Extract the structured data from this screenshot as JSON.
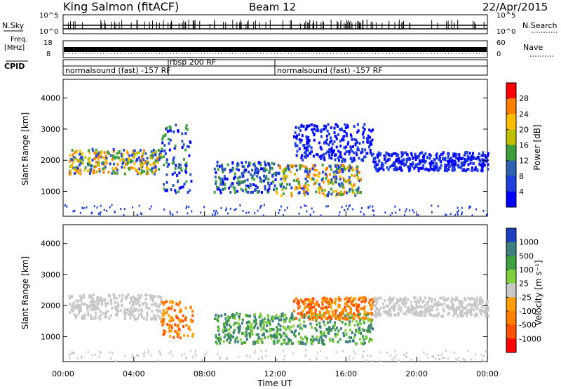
{
  "header": {
    "station": "King Salmon (fitACF)",
    "beam": "Beam 12",
    "date": "22/Apr/2015"
  },
  "strips": {
    "nsky_label": "N.Sky",
    "nsearch_label": "N.Search",
    "exp_top_left": "10^5",
    "exp_bottom_left": "10^0",
    "exp_top_right": "10^5",
    "exp_bottom_right": "10^0",
    "freq_label": "Freq.",
    "freq_unit": "[MHz]",
    "freq_ticks": [
      "18",
      "8"
    ],
    "nave_label": "Nave",
    "nave_ticks": [
      "60",
      "0"
    ],
    "cpid_label": "CPID",
    "cpid_segments": [
      {
        "start_h": 0,
        "end_h": 6.2,
        "label": "normalsound (fast) -157 RF"
      },
      {
        "start_h": 6.2,
        "end_h": 12,
        "label": "rbsp 200 RF"
      },
      {
        "start_h": 12,
        "end_h": 24,
        "label": "normalsound (fast) -157 RF"
      }
    ]
  },
  "chart_data": [
    {
      "type": "heatmap",
      "panel": "power",
      "ylabel": "Slant Range [km]",
      "xlabel": "Time UT",
      "xlim": [
        0,
        24
      ],
      "ylim": [
        200,
        4600
      ],
      "yticks": [
        1000,
        2000,
        3000,
        4000
      ],
      "xticks": [
        "00:00",
        "04:00",
        "08:00",
        "12:00",
        "16:00",
        "20:00",
        "00:00"
      ],
      "colorbar": {
        "label": "Power [dB]",
        "ticks": [
          "28",
          "24",
          "20",
          "16",
          "12",
          "8",
          "4"
        ],
        "colors": [
          "#ff0000",
          "#ff7f00",
          "#ffbf00",
          "#bfbf00",
          "#3f9f3f",
          "#2f5faf",
          "#1f3fdf",
          "#0000ff"
        ]
      },
      "echo_regions": [
        {
          "t0": 0.3,
          "t1": 5.5,
          "r0": 1600,
          "r1": 2400,
          "level": "high"
        },
        {
          "t0": 5.5,
          "t1": 7.2,
          "r0": 1000,
          "r1": 3200,
          "level": "medium"
        },
        {
          "t0": 8.5,
          "t1": 12,
          "r0": 1000,
          "r1": 2000,
          "level": "medium"
        },
        {
          "t0": 12,
          "t1": 16.8,
          "r0": 900,
          "r1": 1900,
          "level": "high"
        },
        {
          "t0": 13,
          "t1": 17.5,
          "r0": 2000,
          "r1": 3200,
          "level": "low"
        },
        {
          "t0": 17.5,
          "t1": 24,
          "r0": 1700,
          "r1": 2300,
          "level": "low"
        }
      ]
    },
    {
      "type": "heatmap",
      "panel": "velocity",
      "ylabel": "Slant Range [km]",
      "xlabel": "Time UT",
      "xlim": [
        0,
        24
      ],
      "ylim": [
        200,
        4600
      ],
      "yticks": [
        1000,
        2000,
        3000,
        4000
      ],
      "xticks": [
        "00:00",
        "04:00",
        "08:00",
        "12:00",
        "16:00",
        "20:00",
        "00:00"
      ],
      "colorbar": {
        "label": "Velocity [m s⁻¹]",
        "ticks": [
          "1000",
          "500",
          "100",
          "25",
          "-25",
          "-100",
          "-500",
          "-1000"
        ],
        "colors": [
          "#1f3fbf",
          "#3f7f7f",
          "#3fa03f",
          "#7fcf3f",
          "#c8c8c8",
          "#ff9f00",
          "#ff7f00",
          "#ff4f00",
          "#ff0000"
        ]
      },
      "echo_regions": [
        {
          "t0": 0.3,
          "t1": 5.5,
          "r0": 1600,
          "r1": 2400,
          "level": "ground"
        },
        {
          "t0": 5.5,
          "t1": 7.3,
          "r0": 1000,
          "r1": 2200,
          "level": "away"
        },
        {
          "t0": 8.5,
          "t1": 17.5,
          "r0": 800,
          "r1": 1800,
          "level": "toward"
        },
        {
          "t0": 13,
          "t1": 17.5,
          "r0": 1600,
          "r1": 2300,
          "level": "away"
        },
        {
          "t0": 17.5,
          "t1": 24,
          "r0": 1700,
          "r1": 2300,
          "level": "ground"
        }
      ]
    }
  ]
}
